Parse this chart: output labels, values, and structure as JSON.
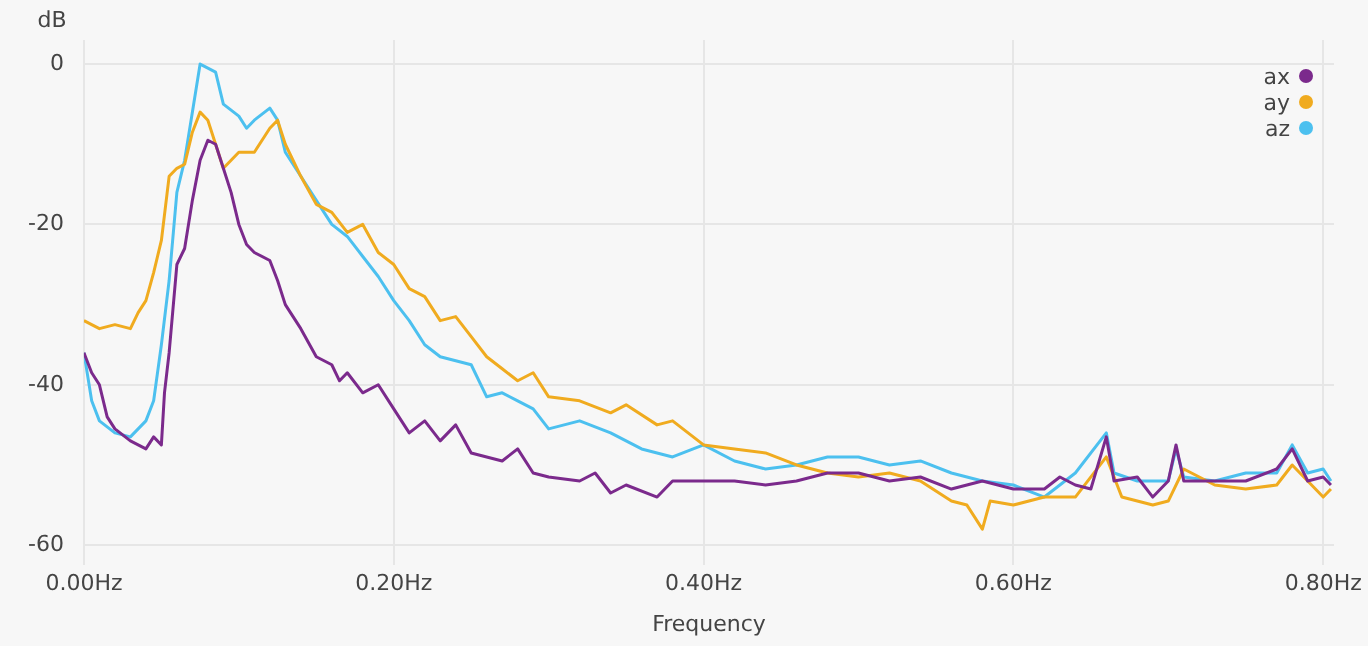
{
  "chart_data": {
    "type": "line",
    "xlabel": "Frequency",
    "ylabel": "dB",
    "xlim": [
      0,
      0.807
    ],
    "ylim": [
      -62.5,
      3
    ],
    "xticks": [
      {
        "value": 0,
        "label": "0.00Hz"
      },
      {
        "value": 0.2,
        "label": "0.20Hz"
      },
      {
        "value": 0.4,
        "label": "0.40Hz"
      },
      {
        "value": 0.6,
        "label": "0.60Hz"
      },
      {
        "value": 0.8,
        "label": "0.80Hz"
      }
    ],
    "yticks": [
      -60,
      -40,
      -20,
      0
    ],
    "grid": true,
    "legend": "top right",
    "marker": "none",
    "line_style": "solid",
    "series": [
      {
        "name": "ax",
        "color": "#7b2a8c",
        "x": [
          0,
          0.005,
          0.01,
          0.015,
          0.02,
          0.03,
          0.04,
          0.045,
          0.05,
          0.052,
          0.055,
          0.06,
          0.065,
          0.07,
          0.075,
          0.08,
          0.085,
          0.09,
          0.095,
          0.1,
          0.105,
          0.11,
          0.12,
          0.125,
          0.13,
          0.14,
          0.15,
          0.16,
          0.165,
          0.17,
          0.18,
          0.19,
          0.2,
          0.21,
          0.22,
          0.23,
          0.24,
          0.25,
          0.27,
          0.28,
          0.29,
          0.3,
          0.32,
          0.33,
          0.34,
          0.35,
          0.37,
          0.38,
          0.4,
          0.42,
          0.44,
          0.46,
          0.48,
          0.5,
          0.52,
          0.54,
          0.56,
          0.58,
          0.6,
          0.62,
          0.63,
          0.64,
          0.65,
          0.66,
          0.665,
          0.68,
          0.69,
          0.7,
          0.705,
          0.71,
          0.73,
          0.75,
          0.77,
          0.78,
          0.79,
          0.8,
          0.805
        ],
        "values": [
          -36,
          -38.5,
          -40,
          -44,
          -45.5,
          -47,
          -48,
          -46.5,
          -47.5,
          -41,
          -36,
          -25,
          -23,
          -17,
          -12,
          -9.5,
          -10,
          -13,
          -16,
          -20,
          -22.5,
          -23.5,
          -24.5,
          -27,
          -30,
          -33,
          -36.5,
          -37.5,
          -39.5,
          -38.5,
          -41,
          -40,
          -43,
          -46,
          -44.5,
          -47,
          -45,
          -48.5,
          -49.5,
          -48,
          -51,
          -51.5,
          -52,
          -51,
          -53.5,
          -52.5,
          -54,
          -52,
          -52,
          -52,
          -52.5,
          -52,
          -51,
          -51,
          -52,
          -51.5,
          -53,
          -52,
          -53,
          -53,
          -51.5,
          -52.5,
          -53,
          -46.5,
          -52,
          -51.5,
          -54,
          -52,
          -47.5,
          -52,
          -52,
          -52,
          -50.5,
          -48,
          -52,
          -51.5,
          -52.5
        ]
      },
      {
        "name": "ay",
        "color": "#f0ab1f",
        "x": [
          0,
          0.01,
          0.02,
          0.03,
          0.035,
          0.04,
          0.045,
          0.05,
          0.055,
          0.06,
          0.065,
          0.07,
          0.075,
          0.08,
          0.085,
          0.09,
          0.095,
          0.1,
          0.11,
          0.12,
          0.125,
          0.13,
          0.14,
          0.15,
          0.16,
          0.17,
          0.18,
          0.19,
          0.2,
          0.21,
          0.22,
          0.23,
          0.24,
          0.25,
          0.26,
          0.27,
          0.28,
          0.29,
          0.3,
          0.32,
          0.34,
          0.35,
          0.37,
          0.38,
          0.4,
          0.42,
          0.44,
          0.46,
          0.48,
          0.5,
          0.52,
          0.54,
          0.56,
          0.57,
          0.58,
          0.585,
          0.6,
          0.62,
          0.64,
          0.66,
          0.67,
          0.69,
          0.7,
          0.71,
          0.73,
          0.75,
          0.77,
          0.78,
          0.79,
          0.8,
          0.805
        ],
        "values": [
          -32,
          -33,
          -32.5,
          -33,
          -31,
          -29.5,
          -26,
          -22,
          -14,
          -13,
          -12.5,
          -8.5,
          -6,
          -7,
          -10,
          -13,
          -12,
          -11,
          -11,
          -8,
          -7,
          -10,
          -14,
          -17.5,
          -18.5,
          -21,
          -20,
          -23.5,
          -25,
          -28,
          -29,
          -32,
          -31.5,
          -34,
          -36.5,
          -38,
          -39.5,
          -38.5,
          -41.5,
          -42,
          -43.5,
          -42.5,
          -45,
          -44.5,
          -47.5,
          -48,
          -48.5,
          -50,
          -51,
          -51.5,
          -51,
          -52,
          -54.5,
          -55,
          -58,
          -54.5,
          -55,
          -54,
          -54,
          -49,
          -54,
          -55,
          -54.5,
          -50.5,
          -52.5,
          -53,
          -52.5,
          -50,
          -52,
          -54,
          -53
        ]
      },
      {
        "name": "az",
        "color": "#4cc0ef",
        "x": [
          0,
          0.005,
          0.01,
          0.02,
          0.03,
          0.04,
          0.045,
          0.05,
          0.055,
          0.06,
          0.065,
          0.07,
          0.075,
          0.08,
          0.085,
          0.09,
          0.1,
          0.105,
          0.11,
          0.12,
          0.125,
          0.13,
          0.14,
          0.15,
          0.16,
          0.17,
          0.18,
          0.19,
          0.2,
          0.21,
          0.22,
          0.23,
          0.24,
          0.25,
          0.26,
          0.27,
          0.28,
          0.29,
          0.3,
          0.32,
          0.34,
          0.36,
          0.38,
          0.4,
          0.42,
          0.44,
          0.46,
          0.48,
          0.5,
          0.52,
          0.54,
          0.56,
          0.58,
          0.6,
          0.62,
          0.64,
          0.66,
          0.665,
          0.68,
          0.7,
          0.705,
          0.71,
          0.73,
          0.75,
          0.77,
          0.78,
          0.79,
          0.8,
          0.805
        ],
        "values": [
          -36,
          -42,
          -44.5,
          -46,
          -46.5,
          -44.5,
          -42,
          -35,
          -27,
          -16,
          -12,
          -6,
          0,
          -0.5,
          -1,
          -5,
          -6.5,
          -8,
          -7,
          -5.5,
          -7,
          -11,
          -14,
          -17,
          -20,
          -21.5,
          -24,
          -26.5,
          -29.5,
          -32,
          -35,
          -36.5,
          -37,
          -37.5,
          -41.5,
          -41,
          -42,
          -43,
          -45.5,
          -44.5,
          -46,
          -48,
          -49,
          -47.5,
          -49.5,
          -50.5,
          -50,
          -49,
          -49,
          -50,
          -49.5,
          -51,
          -52,
          -52.5,
          -54,
          -51,
          -46,
          -51,
          -52,
          -52,
          -48,
          -51.5,
          -52,
          -51,
          -51,
          -47.5,
          -51,
          -50.5,
          -52
        ]
      }
    ]
  }
}
